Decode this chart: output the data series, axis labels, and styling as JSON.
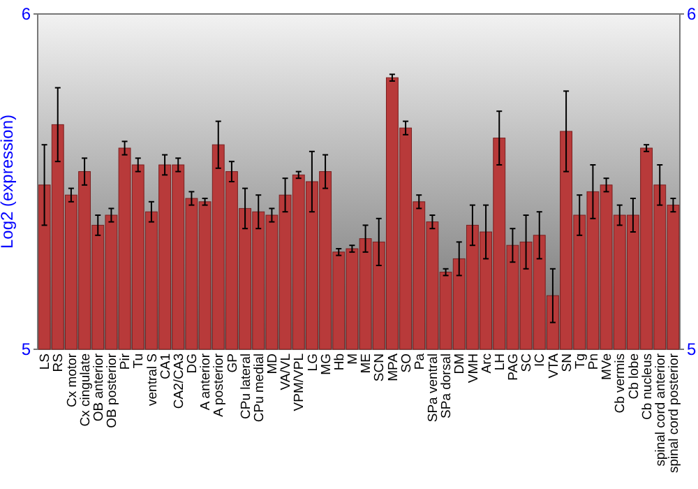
{
  "chart_data": {
    "type": "bar",
    "ylabel": "Log2 (expression)",
    "categories": [
      "LS",
      "RS",
      "Cx motor",
      "Cx cingulate",
      "OB anterior",
      "OB posterior",
      "Pir",
      "Tu",
      "ventral S",
      "CA1",
      "CA2/CA3",
      "DG",
      "A anterior",
      "A posterior",
      "GP",
      "CPu lateral",
      "CPu medial",
      "MD",
      "VA/VL",
      "VPM/VPL",
      "LG",
      "MG",
      "Hb",
      "M",
      "ME",
      "SCN",
      "MPA",
      "SO",
      "Pa",
      "SPa ventral",
      "SPa dorsal",
      "DM",
      "VMH",
      "Arc",
      "LH",
      "PAG",
      "SC",
      "IC",
      "VTA",
      "SN",
      "Tg",
      "Pn",
      "MVe",
      "Cb vermis",
      "Cb lobe",
      "Cb nucleus",
      "spinal cord anterior",
      "spinal cord posterior"
    ],
    "series": [
      {
        "color": "#b83a3a",
        "values": [
          5.49,
          5.67,
          5.46,
          5.53,
          5.37,
          5.4,
          5.6,
          5.55,
          5.41,
          5.55,
          5.55,
          5.45,
          5.44,
          5.61,
          5.53,
          5.42,
          5.41,
          5.4,
          5.46,
          5.52,
          5.5,
          5.53,
          5.29,
          5.3,
          5.33,
          5.32,
          5.81,
          5.66,
          5.44,
          5.38,
          5.23,
          5.27,
          5.37,
          5.35,
          5.63,
          5.31,
          5.32,
          5.34,
          5.16,
          5.65,
          5.4,
          5.47,
          5.49,
          5.4,
          5.4,
          5.6,
          5.49,
          5.43
        ],
        "errors": [
          0.12,
          0.11,
          0.02,
          0.04,
          0.03,
          0.02,
          0.02,
          0.02,
          0.03,
          0.03,
          0.02,
          0.02,
          0.01,
          0.07,
          0.03,
          0.06,
          0.05,
          0.02,
          0.05,
          0.01,
          0.09,
          0.05,
          0.01,
          0.01,
          0.04,
          0.07,
          0.01,
          0.02,
          0.02,
          0.02,
          0.01,
          0.05,
          0.06,
          0.08,
          0.08,
          0.05,
          0.08,
          0.07,
          0.08,
          0.12,
          0.06,
          0.08,
          0.02,
          0.03,
          0.05,
          0.01,
          0.06,
          0.02
        ]
      }
    ],
    "ylim": [
      5,
      6
    ],
    "yticks": [
      5,
      6
    ],
    "y2lim": [
      5,
      6
    ],
    "y2ticks": [
      5,
      6
    ],
    "grid": false
  }
}
